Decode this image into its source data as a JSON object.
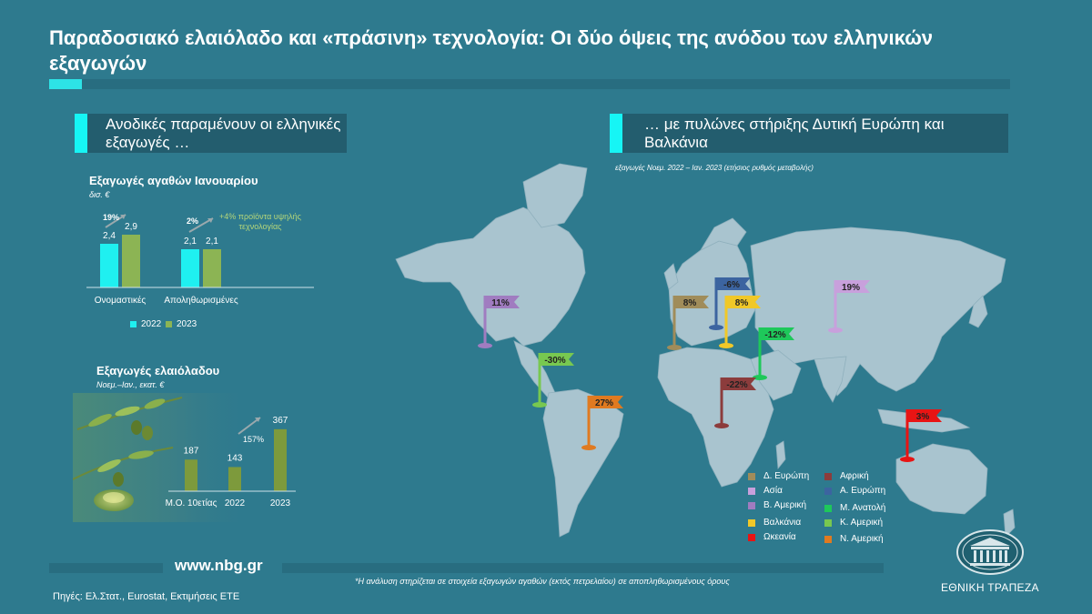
{
  "title": "Παραδοσιακό ελαιόλαδο και «πράσινη» τεχνολογία: Οι δύο όψεις της ανόδου των ελληνικών εξαγωγών",
  "left_section": {
    "label": "Ανοδικές παραμένουν οι ελληνικές εξαγωγές …"
  },
  "right_section": {
    "label": "… με πυλώνες στήριξης Δυτική Ευρώπη και Βαλκάνια"
  },
  "colors": {
    "background": "#2e7a8e",
    "accent": "#16f5f5",
    "bar_2022": "#1ff0f0",
    "bar_2023": "#8cb454",
    "olive_bar": "#7d9a3c",
    "map_land": "#a9c4cf"
  },
  "chart_data": [
    {
      "type": "bar",
      "title": "Εξαγωγές αγαθών Ιανουαρίου",
      "unit": "δισ. €",
      "categories": [
        "Ονομαστικές",
        "Αποληθωρισμένες"
      ],
      "series": [
        {
          "name": "2022",
          "values": [
            2.4,
            2.1
          ],
          "labels": [
            "2,4",
            "2,1"
          ],
          "color": "#1ff0f0"
        },
        {
          "name": "2023",
          "values": [
            2.9,
            2.1
          ],
          "labels": [
            "2,9",
            "2,1"
          ],
          "color": "#8cb454"
        }
      ],
      "growth_labels": [
        "19%",
        "2%"
      ],
      "annotation": "+4% προϊόντα υψηλής τεχνολογίας",
      "ylim": [
        0,
        3.5
      ]
    },
    {
      "type": "bar",
      "title": "Εξαγωγές ελαιόλαδου",
      "unit": "Νοεμ.–Ιαν., εκατ. €",
      "categories": [
        "Μ.Ο. 10ετίας",
        "2022",
        "2023"
      ],
      "values": [
        187,
        143,
        367
      ],
      "labels": [
        "187",
        "143",
        "367"
      ],
      "growth_label": "157%",
      "ylim": [
        0,
        420
      ]
    },
    {
      "type": "map",
      "subtitle": "εξαγωγές Νοεμ. 2022 – Ιαν. 2023 (ετήσιος ρυθμός μεταβολής)",
      "regions": [
        {
          "name": "Β. Αμερική",
          "value": "11%",
          "color": "#a07cc0"
        },
        {
          "name": "Κ. Αμερική",
          "value": "-30%",
          "color": "#78c850"
        },
        {
          "name": "Ν. Αμερική",
          "value": "27%",
          "color": "#e07a20"
        },
        {
          "name": "Δ. Ευρώπη",
          "value": "8%",
          "color": "#a08c5a"
        },
        {
          "name": "Α. Ευρώπη",
          "value": "-6%",
          "color": "#3c64a0"
        },
        {
          "name": "Βαλκάνια",
          "value": "8%",
          "color": "#f0c828"
        },
        {
          "name": "Μ. Ανατολή",
          "value": "-12%",
          "color": "#1ec85a"
        },
        {
          "name": "Αφρική",
          "value": "-22%",
          "color": "#8c3c3c"
        },
        {
          "name": "Ασία",
          "value": "19%",
          "color": "#c8a0dc"
        },
        {
          "name": "Ωκεανία",
          "value": "3%",
          "color": "#e81414"
        }
      ]
    }
  ],
  "map_legend": [
    "Δ. Ευρώπη",
    "Ασία",
    "Β. Αμερική",
    "Βαλκάνια",
    "Ωκεανία",
    "Αφρική",
    "Α. Ευρώπη",
    "Μ. Ανατολή",
    "Κ. Αμερική",
    "Ν. Αμερική"
  ],
  "footer": {
    "website": "www.nbg.gr",
    "footnote": "*Η ανάλυση στηρίζεται σε στοιχεία εξαγωγών αγαθών (εκτός πετρελαίου) σε αποπληθωρισμένους όρους",
    "sources": "Πηγές: Ελ.Στατ., Eurostat, Εκτιμήσεις ΕΤΕ",
    "bank_name": "ΕΘΝΙΚΗ ΤΡΑΠΕΖΑ"
  },
  "icons": {
    "flag": "flag-icon",
    "logo": "bank-building-icon",
    "olives": "olive-branch-icon"
  }
}
